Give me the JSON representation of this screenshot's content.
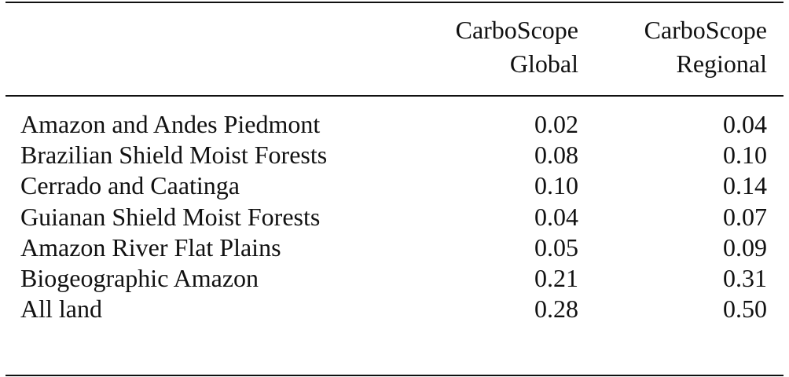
{
  "table": {
    "header": {
      "global_line1": "CarboScope",
      "global_line2": "Global",
      "regional_line1": "CarboScope",
      "regional_line2": "Regional"
    },
    "rows": [
      {
        "label": "Amazon and Andes Piedmont",
        "global": "0.02",
        "regional": "0.04"
      },
      {
        "label": "Brazilian Shield Moist Forests",
        "global": "0.08",
        "regional": "0.10"
      },
      {
        "label": "Cerrado and Caatinga",
        "global": "0.10",
        "regional": "0.14"
      },
      {
        "label": "Guianan Shield Moist Forests",
        "global": "0.04",
        "regional": "0.07"
      },
      {
        "label": "Amazon River Flat Plains",
        "global": "0.05",
        "regional": "0.09"
      },
      {
        "label": "Biogeographic Amazon",
        "global": "0.21",
        "regional": "0.31"
      },
      {
        "label": "All land",
        "global": "0.28",
        "regional": "0.50"
      }
    ]
  }
}
